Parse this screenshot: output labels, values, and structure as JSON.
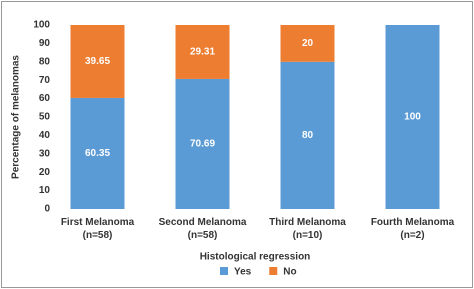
{
  "chart_data": {
    "type": "stacked_bar",
    "categories": [
      "First Melanoma (n=58)",
      "Second Melanoma (n=58)",
      "Third Melanoma (n=10)",
      "Fourth Melanoma (n=2)"
    ],
    "series": [
      {
        "name": "Yes",
        "color": "#5b9bd5",
        "values": [
          60.35,
          70.69,
          80,
          100
        ]
      },
      {
        "name": "No",
        "color": "#ed7d31",
        "values": [
          39.65,
          29.31,
          20,
          0
        ]
      }
    ],
    "x_label": "Histological regression",
    "y_label": "Percentage of melanomas",
    "ylim": [
      0,
      100
    ],
    "yticks": [
      0,
      10,
      20,
      30,
      40,
      50,
      60,
      70,
      80,
      90,
      100
    ],
    "grid": false,
    "legend": "bottom"
  }
}
